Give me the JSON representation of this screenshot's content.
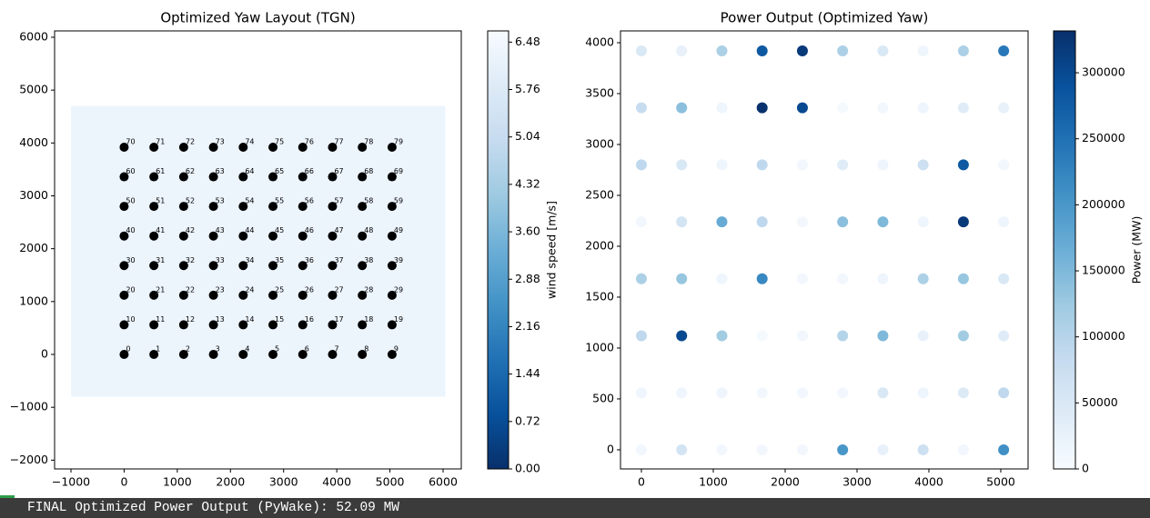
{
  "chart_data": [
    {
      "type": "layout",
      "title": "Optimized Yaw Layout (TGN)",
      "x": [
        0,
        560,
        1120,
        1680,
        2240,
        2800,
        3360,
        3920,
        4480,
        5040,
        0,
        560,
        1120,
        1680,
        2240,
        2800,
        3360,
        3920,
        4480,
        5040,
        0,
        560,
        1120,
        1680,
        2240,
        2800,
        3360,
        3920,
        4480,
        5040,
        0,
        560,
        1120,
        1680,
        2240,
        2800,
        3360,
        3920,
        4480,
        5040,
        0,
        560,
        1120,
        1680,
        2240,
        2800,
        3360,
        3920,
        4480,
        5040,
        0,
        560,
        1120,
        1680,
        2240,
        2800,
        3360,
        3920,
        4480,
        5040,
        0,
        560,
        1120,
        1680,
        2240,
        2800,
        3360,
        3920,
        4480,
        5040,
        0,
        560,
        1120,
        1680,
        2240,
        2800,
        3360,
        3920,
        4480,
        5040
      ],
      "y": [
        0,
        0,
        0,
        0,
        0,
        0,
        0,
        0,
        0,
        0,
        560,
        560,
        560,
        560,
        560,
        560,
        560,
        560,
        560,
        560,
        1120,
        1120,
        1120,
        1120,
        1120,
        1120,
        1120,
        1120,
        1120,
        1120,
        1680,
        1680,
        1680,
        1680,
        1680,
        1680,
        1680,
        1680,
        1680,
        1680,
        2240,
        2240,
        2240,
        2240,
        2240,
        2240,
        2240,
        2240,
        2240,
        2240,
        2800,
        2800,
        2800,
        2800,
        2800,
        2800,
        2800,
        2800,
        2800,
        2800,
        3360,
        3360,
        3360,
        3360,
        3360,
        3360,
        3360,
        3360,
        3360,
        3360,
        3920,
        3920,
        3920,
        3920,
        3920,
        3920,
        3920,
        3920,
        3920,
        3920
      ],
      "labels": [
        "0",
        "1",
        "2",
        "3",
        "4",
        "5",
        "6",
        "7",
        "8",
        "9",
        "10",
        "11",
        "12",
        "13",
        "14",
        "15",
        "16",
        "17",
        "18",
        "19",
        "20",
        "21",
        "22",
        "23",
        "24",
        "25",
        "26",
        "27",
        "28",
        "29",
        "30",
        "31",
        "32",
        "33",
        "34",
        "35",
        "36",
        "37",
        "38",
        "39",
        "40",
        "41",
        "42",
        "43",
        "44",
        "45",
        "46",
        "47",
        "48",
        "49",
        "50",
        "51",
        "52",
        "53",
        "54",
        "55",
        "56",
        "57",
        "58",
        "59",
        "60",
        "61",
        "62",
        "63",
        "64",
        "65",
        "66",
        "67",
        "68",
        "69",
        "70",
        "71",
        "72",
        "73",
        "74",
        "75",
        "76",
        "77",
        "78",
        "79"
      ],
      "marker_color": "#000000",
      "field": {
        "xlim": [
          -1000,
          6040
        ],
        "ylim": [
          -800,
          4700
        ],
        "value": 6.3
      },
      "xlim": [
        -1308,
        6342
      ],
      "ylim": [
        -2166,
        6120
      ],
      "xticks": [
        {
          "value": -1000,
          "label": "−1000"
        },
        0,
        1000,
        2000,
        3000,
        4000,
        5000,
        6000
      ],
      "yticks": [
        {
          "value": -2000,
          "label": "−2000"
        },
        {
          "value": -1000,
          "label": "−1000"
        },
        0,
        1000,
        2000,
        3000,
        4000,
        5000,
        6000
      ],
      "colorbar": {
        "label": "wind speed [m/s]",
        "clim": [
          0,
          6.65
        ],
        "ticks": [
          {
            "value": 0,
            "label": "0.00"
          },
          0.72,
          1.44,
          2.16,
          2.88,
          {
            "value": 3.6,
            "label": "3.60"
          },
          4.32,
          5.04,
          5.76,
          6.48
        ],
        "colormap": [
          "#08306b",
          "#08519c",
          "#2171b5",
          "#4292c6",
          "#6baed6",
          "#9ecae1",
          "#c6dbef",
          "#deebf7",
          "#f7fbff"
        ]
      }
    },
    {
      "type": "scatter",
      "title": "Power Output (Optimized Yaw)",
      "x": [
        0,
        560,
        1120,
        1680,
        2240,
        2800,
        3360,
        3920,
        4480,
        5040,
        0,
        560,
        1120,
        1680,
        2240,
        2800,
        3360,
        3920,
        4480,
        5040,
        0,
        560,
        1120,
        1680,
        2240,
        2800,
        3360,
        3920,
        4480,
        5040,
        0,
        560,
        1120,
        1680,
        2240,
        2800,
        3360,
        3920,
        4480,
        5040,
        0,
        560,
        1120,
        1680,
        2240,
        2800,
        3360,
        3920,
        4480,
        5040,
        0,
        560,
        1120,
        1680,
        2240,
        2800,
        3360,
        3920,
        4480,
        5040,
        0,
        560,
        1120,
        1680,
        2240,
        2800,
        3360,
        3920,
        4480,
        5040,
        0,
        560,
        1120,
        1680,
        2240,
        2800,
        3360,
        3920,
        4480,
        5040
      ],
      "y": [
        0,
        0,
        0,
        0,
        0,
        0,
        0,
        0,
        0,
        0,
        560,
        560,
        560,
        560,
        560,
        560,
        560,
        560,
        560,
        560,
        1120,
        1120,
        1120,
        1120,
        1120,
        1120,
        1120,
        1120,
        1120,
        1120,
        1680,
        1680,
        1680,
        1680,
        1680,
        1680,
        1680,
        1680,
        1680,
        1680,
        2240,
        2240,
        2240,
        2240,
        2240,
        2240,
        2240,
        2240,
        2240,
        2240,
        2800,
        2800,
        2800,
        2800,
        2800,
        2800,
        2800,
        2800,
        2800,
        2800,
        3360,
        3360,
        3360,
        3360,
        3360,
        3360,
        3360,
        3360,
        3360,
        3360,
        3920,
        3920,
        3920,
        3920,
        3920,
        3920,
        3920,
        3920,
        3920,
        3920
      ],
      "values": [
        10000,
        60000,
        10000,
        10000,
        10000,
        200000,
        25000,
        70000,
        10000,
        210000,
        15000,
        15000,
        15000,
        10000,
        10000,
        10000,
        50000,
        15000,
        45000,
        90000,
        90000,
        300000,
        120000,
        5000,
        10000,
        100000,
        150000,
        25000,
        120000,
        40000,
        110000,
        130000,
        15000,
        220000,
        10000,
        10000,
        15000,
        110000,
        130000,
        50000,
        10000,
        60000,
        170000,
        90000,
        10000,
        140000,
        150000,
        15000,
        320000,
        15000,
        90000,
        50000,
        15000,
        90000,
        10000,
        40000,
        15000,
        70000,
        280000,
        10000,
        80000,
        140000,
        15000,
        330000,
        300000,
        5000,
        10000,
        15000,
        40000,
        25000,
        50000,
        25000,
        110000,
        280000,
        320000,
        110000,
        50000,
        15000,
        110000,
        240000
      ],
      "xlim": [
        -291,
        5380
      ],
      "ylim": [
        -188,
        4116
      ],
      "xticks": [
        0,
        1000,
        2000,
        3000,
        4000,
        5000
      ],
      "yticks": [
        0,
        500,
        1000,
        1500,
        2000,
        2500,
        3000,
        3500,
        4000
      ],
      "colorbar": {
        "label": "Power (MW)",
        "clim": [
          0,
          331700
        ],
        "ticks": [
          0,
          50000,
          100000,
          150000,
          200000,
          250000,
          300000
        ],
        "colormap": [
          "#f7fbff",
          "#deebf7",
          "#c6dbef",
          "#9ecae1",
          "#6baed6",
          "#4292c6",
          "#2171b5",
          "#08519c",
          "#08306b"
        ]
      }
    }
  ],
  "console": {
    "text": "FINAL Optimized Power Output (PyWake): 52.09 MW"
  }
}
